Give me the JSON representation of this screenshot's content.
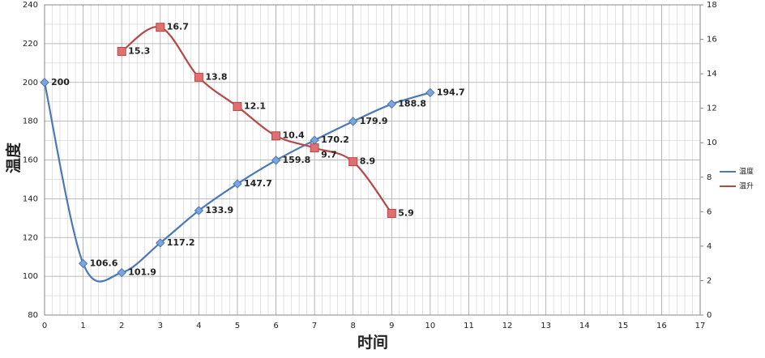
{
  "chart_data": {
    "type": "line",
    "x_label": "时间",
    "y_label": "温度",
    "x": [
      0,
      1,
      2,
      3,
      4,
      5,
      6,
      7,
      8,
      9,
      10
    ],
    "series": [
      {
        "name": "温度",
        "color": "#4a78b8",
        "values": [
          200,
          106.6,
          101.9,
          117.2,
          133.9,
          147.7,
          159.8,
          170.2,
          179.9,
          188.8,
          194.7
        ]
      },
      {
        "name": "温升",
        "color": "#b84848",
        "axis": "y2",
        "values": [
          null,
          null,
          15.3,
          16.7,
          13.8,
          12.1,
          10.4,
          9.7,
          8.9,
          5.9,
          null
        ]
      }
    ],
    "xlim": [
      0,
      17
    ],
    "xticks": [
      0,
      1,
      2,
      3,
      4,
      5,
      6,
      7,
      8,
      9,
      10,
      11,
      12,
      13,
      14,
      15,
      16,
      17
    ],
    "ylim": [
      80,
      240
    ],
    "yticks": [
      80,
      100,
      120,
      140,
      160,
      180,
      200,
      220,
      240
    ],
    "y2lim": [
      0,
      18
    ],
    "y2ticks": [
      0,
      2,
      4,
      6,
      8,
      10,
      12,
      14,
      16,
      18
    ],
    "grid": true,
    "legend": "right"
  }
}
